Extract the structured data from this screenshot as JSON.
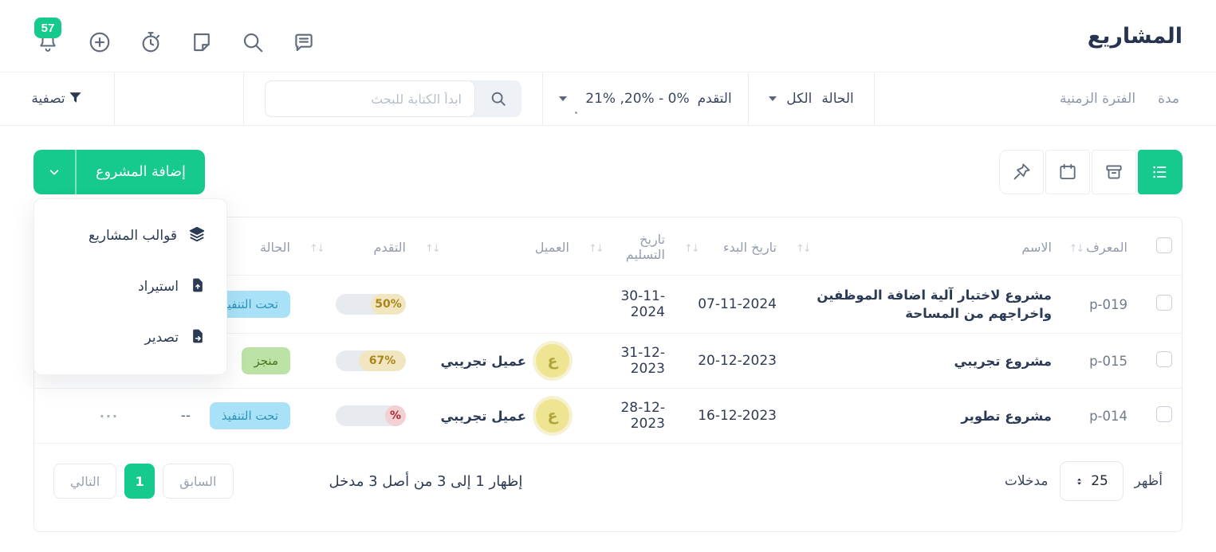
{
  "topbar": {
    "title": "المشاريع",
    "notification_count": "57"
  },
  "filter_bar": {
    "duration_label": "مدة",
    "period_label": "الفترة الزمنية",
    "status_label": "الحالة",
    "status_value": "الكل",
    "progress_label": "التقدم",
    "progress_value": "0% - 20%, 21%",
    "search_placeholder": "ابدأ الكتابة للبحث",
    "filter_button_label": "تصفية"
  },
  "toolbar": {
    "add_project_label": "إضافة المشروع",
    "menu_items": [
      {
        "label": "قوالب المشاريع",
        "icon": "layers-icon"
      },
      {
        "label": "استيراد",
        "icon": "file-import-icon"
      },
      {
        "label": "تصدير",
        "icon": "file-export-icon"
      }
    ]
  },
  "table": {
    "headers": {
      "id": "المعرف",
      "name": "الاسم",
      "start_date": "تاريخ البدء",
      "delivery_date": "تاريخ التسليم",
      "client": "العميل",
      "progress": "التقدم",
      "status": "الحالة"
    },
    "rows": [
      {
        "id": "p-019",
        "name": "مشروع لاختبار آلية اضافة الموظفين واخراجهم من المساحة",
        "start_date": "07-11-2024",
        "delivery_date": "30-11-2024",
        "client": "",
        "client_initial": "",
        "progress_label": "50%",
        "progress_pct": 50,
        "status": "تحت التنفيذ",
        "extra": "",
        "actions": ""
      },
      {
        "id": "p-015",
        "name": "مشروع تجريبي",
        "start_date": "20-12-2023",
        "delivery_date": "31-12-2023",
        "client": "عميل تجريبي",
        "client_initial": "ع",
        "progress_label": "67%",
        "progress_pct": 67,
        "status": "منجز",
        "extra": "",
        "actions": ""
      },
      {
        "id": "p-014",
        "name": "مشروع تطوير",
        "start_date": "16-12-2023",
        "delivery_date": "28-12-2023",
        "client": "عميل تجريبي",
        "client_initial": "ع",
        "progress_label": "%",
        "progress_pct": 0,
        "status": "تحت التنفيذ",
        "extra": "--",
        "actions": "···"
      }
    ]
  },
  "pagination": {
    "show_label": "أظهر",
    "page_size": "25",
    "entries_label": "مدخلات",
    "info": "إظهار 1 إلى 3 من أصل 3 مدخل",
    "prev_label": "السابق",
    "current_page": "1",
    "next_label": "التالي"
  },
  "colors": {
    "accent_green": "#16c98d",
    "status_in_progress_bg": "#a9e2f8",
    "status_in_progress_text": "#2d93bb",
    "status_done_bg": "#bce2a6",
    "status_done_text": "#48761f",
    "progress_fill_bg": "#f2e6c0",
    "progress_fill_text": "#a9861c",
    "progress_zero_bg": "#f3d0d3",
    "progress_zero_text": "#ae2936"
  }
}
